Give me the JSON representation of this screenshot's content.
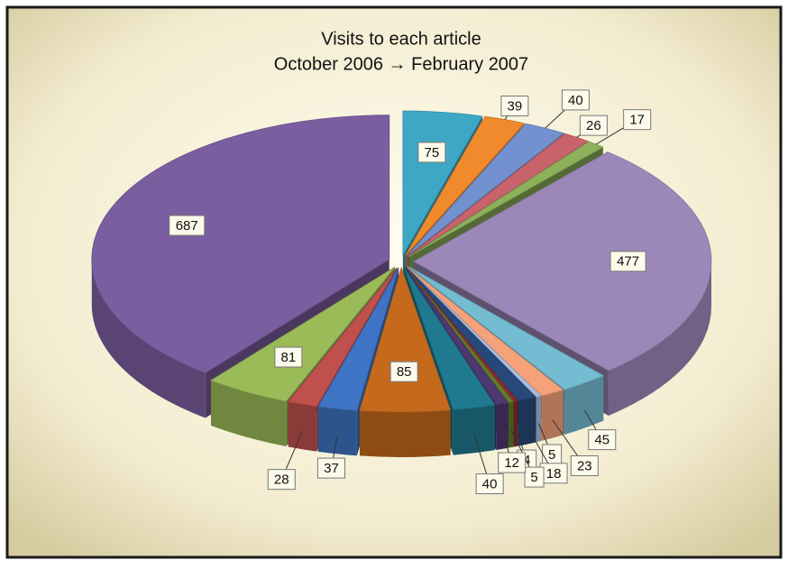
{
  "chart_data": {
    "type": "pie3d",
    "title": "Visits to each article",
    "subtitle": "October 2006 → February 2007",
    "values": [
      75,
      39,
      40,
      26,
      17,
      477,
      45,
      23,
      5,
      18,
      4,
      5,
      12,
      40,
      85,
      37,
      28,
      81,
      687
    ],
    "colors": [
      "#3ea8c4",
      "#f08a2c",
      "#7391cf",
      "#c8636b",
      "#8cb15a",
      "#9b88b8",
      "#74bcd1",
      "#f5a27a",
      "#a9bde0",
      "#27487a",
      "#8c2a2a",
      "#5e7c2c",
      "#4e3870",
      "#1f7a8f",
      "#c56a1c",
      "#3f74c4",
      "#c0504d",
      "#9bbb59",
      "#7b5ea0"
    ],
    "exploded": true
  }
}
